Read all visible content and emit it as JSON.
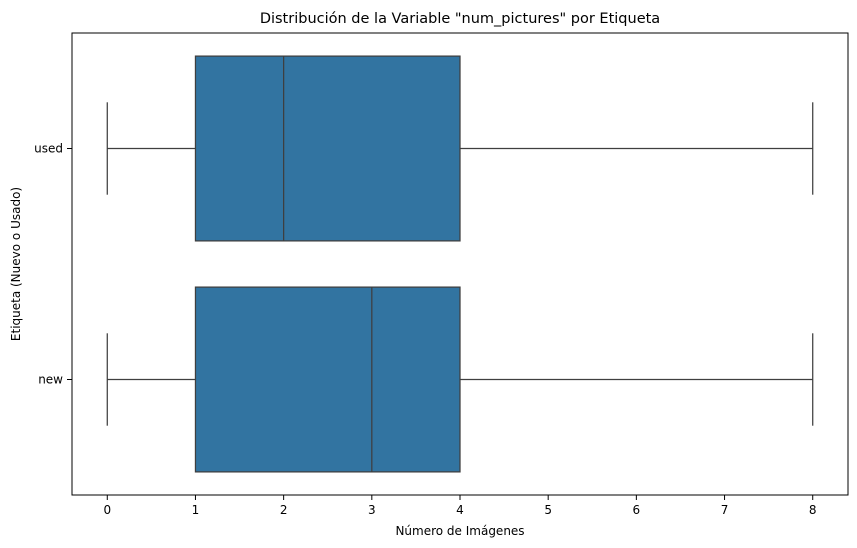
{
  "chart_data": {
    "type": "boxplot",
    "orientation": "horizontal",
    "title": "Distribución de la Variable \"num_pictures\" por Etiqueta",
    "xlabel": "Número de Imágenes",
    "ylabel": "Etiqueta (Nuevo o Usado)",
    "xlim": [
      -0.4,
      8.4
    ],
    "xticks": [
      0,
      1,
      2,
      3,
      4,
      5,
      6,
      7,
      8
    ],
    "grid": false,
    "categories": [
      "used",
      "new"
    ],
    "boxes": [
      {
        "category": "used",
        "whisker_low": 0,
        "q1": 1,
        "median": 2,
        "q3": 4,
        "whisker_high": 8
      },
      {
        "category": "new",
        "whisker_low": 0,
        "q1": 1,
        "median": 3,
        "q3": 4,
        "whisker_high": 8
      }
    ],
    "colors": {
      "box_fill": "#3274a1",
      "line": "#3f3f3f"
    }
  }
}
